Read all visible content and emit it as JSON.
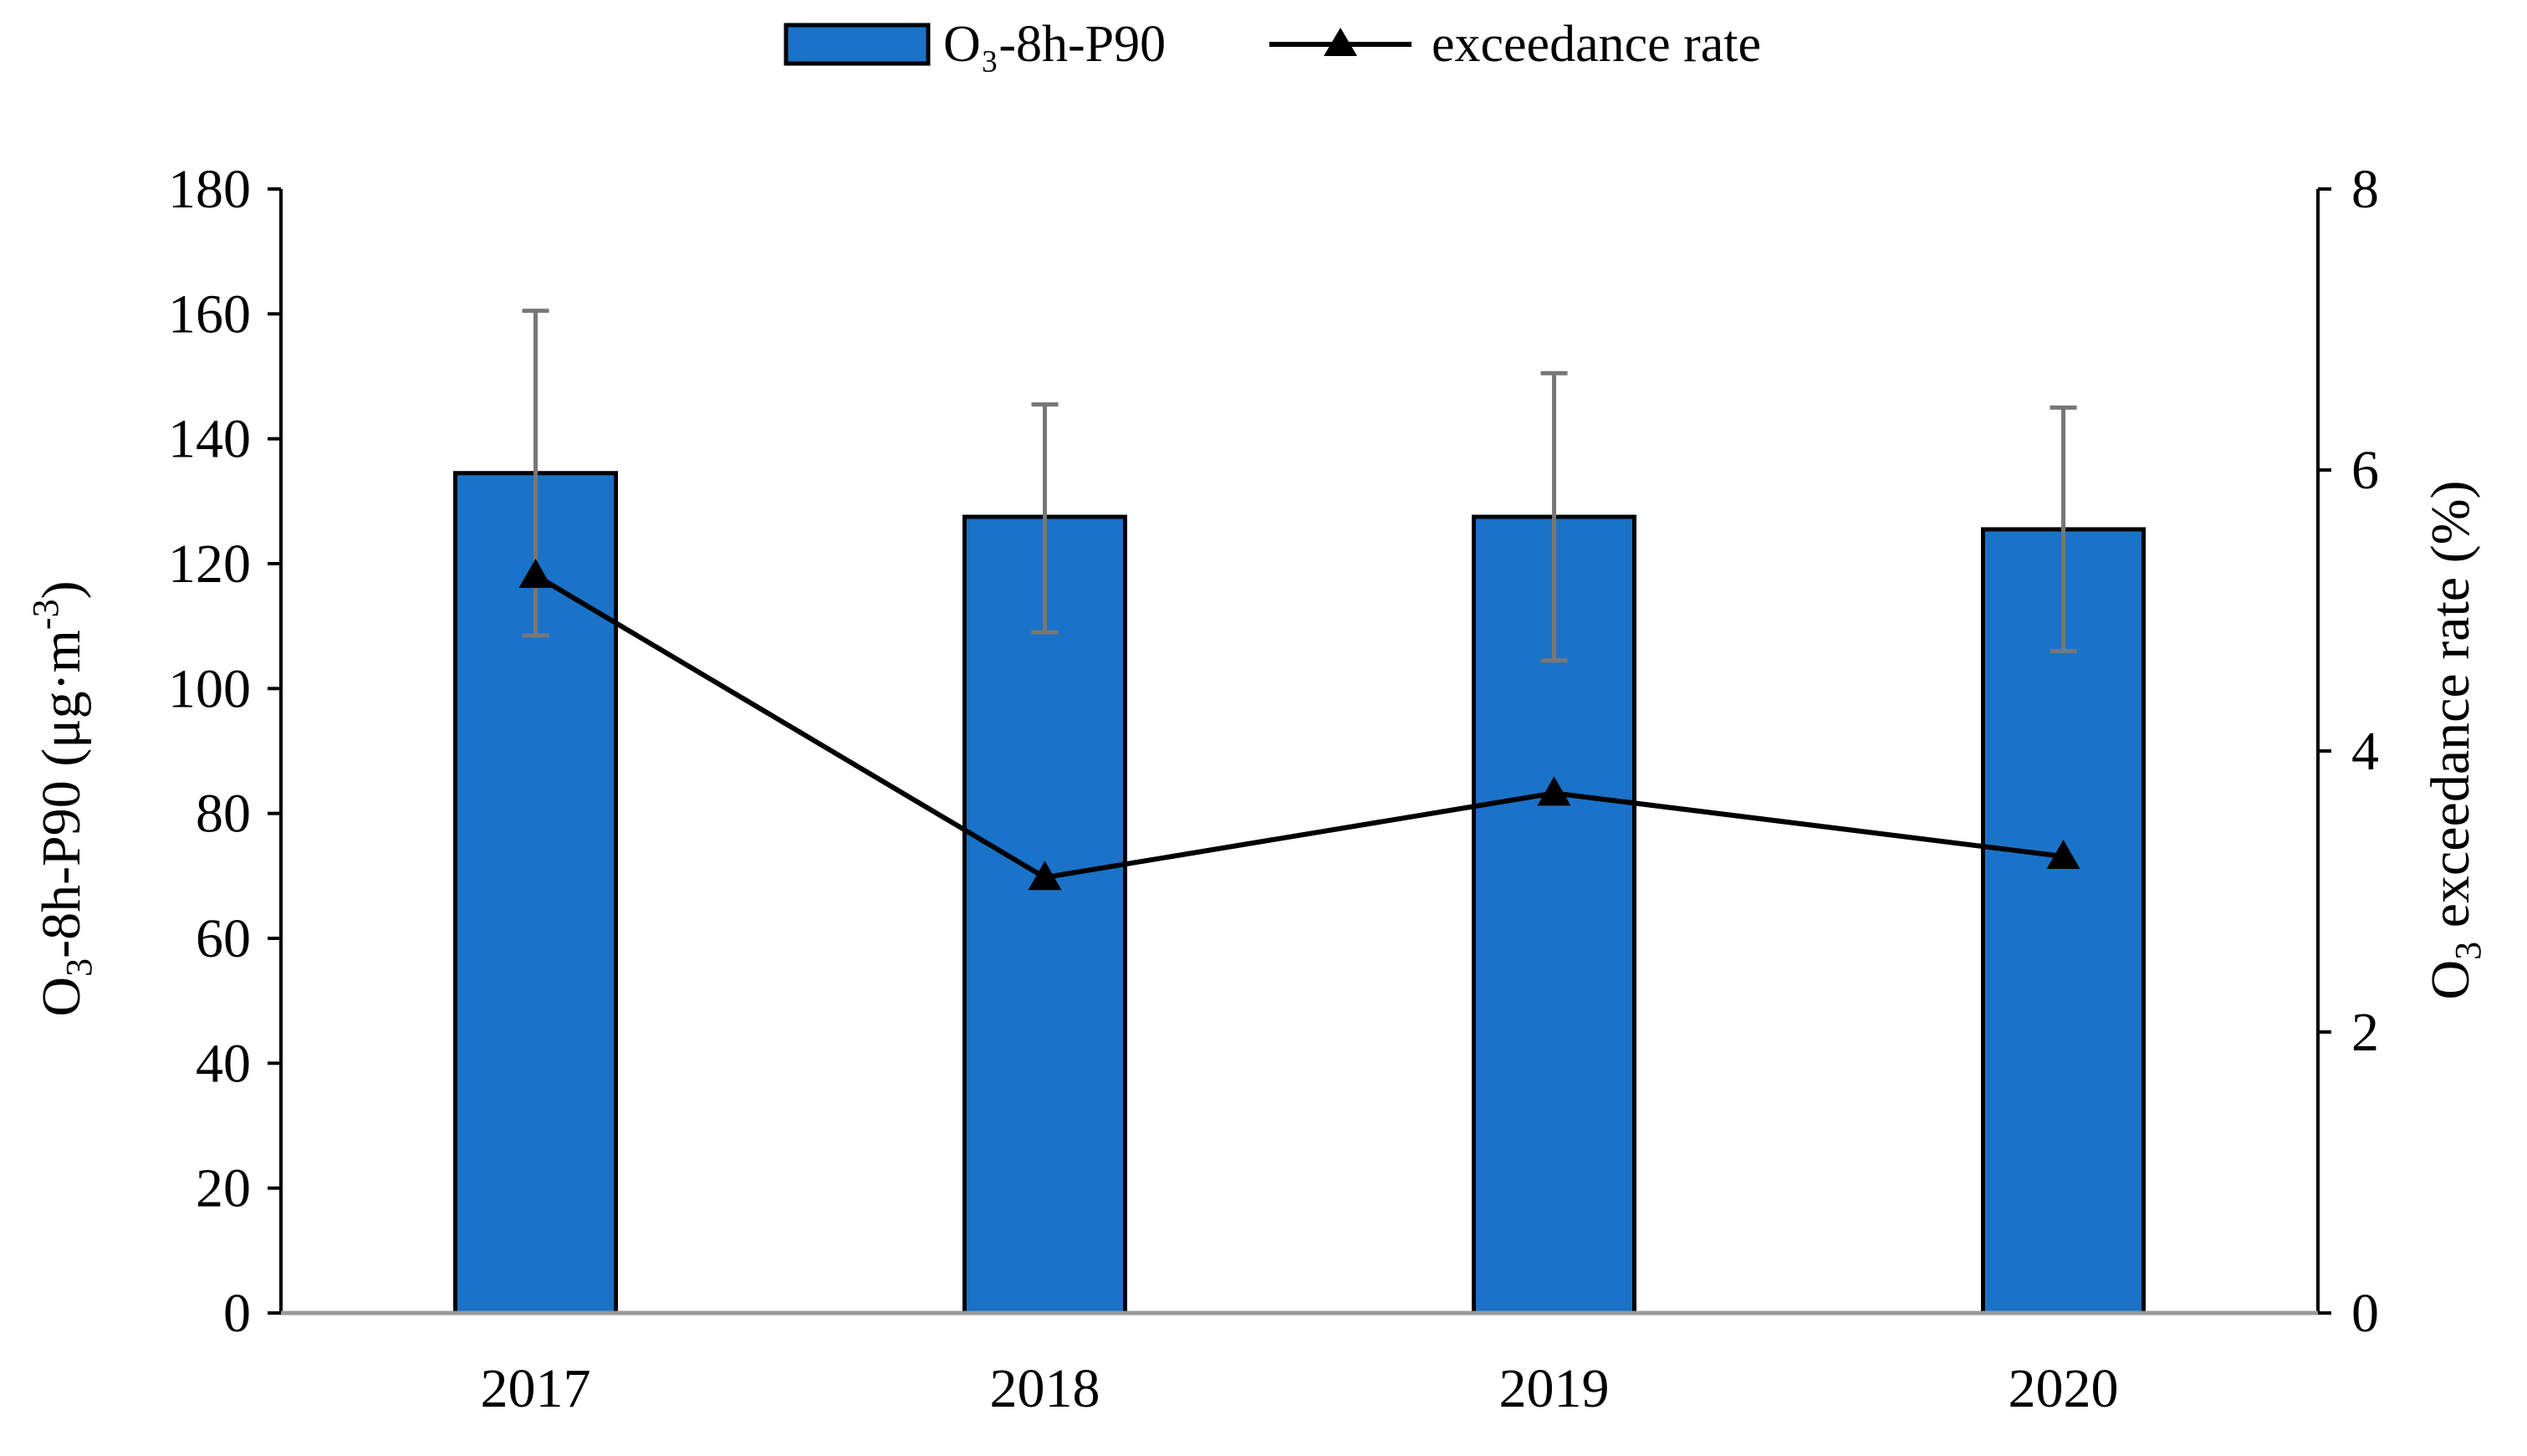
{
  "colors": {
    "bar_fill": "#1a73c8",
    "bar_stroke": "#000000",
    "error_bar": "#777777",
    "line": "#000000",
    "axis": "#000000",
    "baseline": "#999999"
  },
  "legend": {
    "bar_label": "O₃-8h-P90",
    "line_label": "exceedance rate",
    "line_marker": "triangle-marker-icon"
  },
  "chart_data": {
    "type": "bar",
    "categories": [
      "2017",
      "2018",
      "2019",
      "2020"
    ],
    "series": [
      {
        "name": "O₃-8h-P90",
        "kind": "bar",
        "axis": "left",
        "values": [
          134.5,
          127.5,
          127.5,
          125.5
        ],
        "error_upper": [
          160.5,
          145.5,
          150.5,
          145.0
        ],
        "error_lower": [
          108.5,
          109.0,
          104.5,
          106.0
        ]
      },
      {
        "name": "exceedance rate",
        "kind": "line",
        "axis": "right",
        "marker": "triangle",
        "values": [
          5.25,
          3.1,
          3.7,
          3.25
        ]
      }
    ],
    "left_axis": {
      "label_main": "O",
      "label_sub": "3",
      "label_rest": "-8h-P90 (μg·m",
      "label_sup": "-3",
      "label_end": ")",
      "ylim": [
        0,
        180
      ],
      "ticks": [
        0,
        20,
        40,
        60,
        80,
        100,
        120,
        140,
        160,
        180
      ]
    },
    "right_axis": {
      "label_main": "O",
      "label_sub": "3",
      "label_rest": " exceedance rate (%)",
      "ylim": [
        0,
        8
      ],
      "ticks": [
        0,
        2,
        4,
        6,
        8
      ]
    },
    "grid": false,
    "legend_position": "top-center"
  }
}
